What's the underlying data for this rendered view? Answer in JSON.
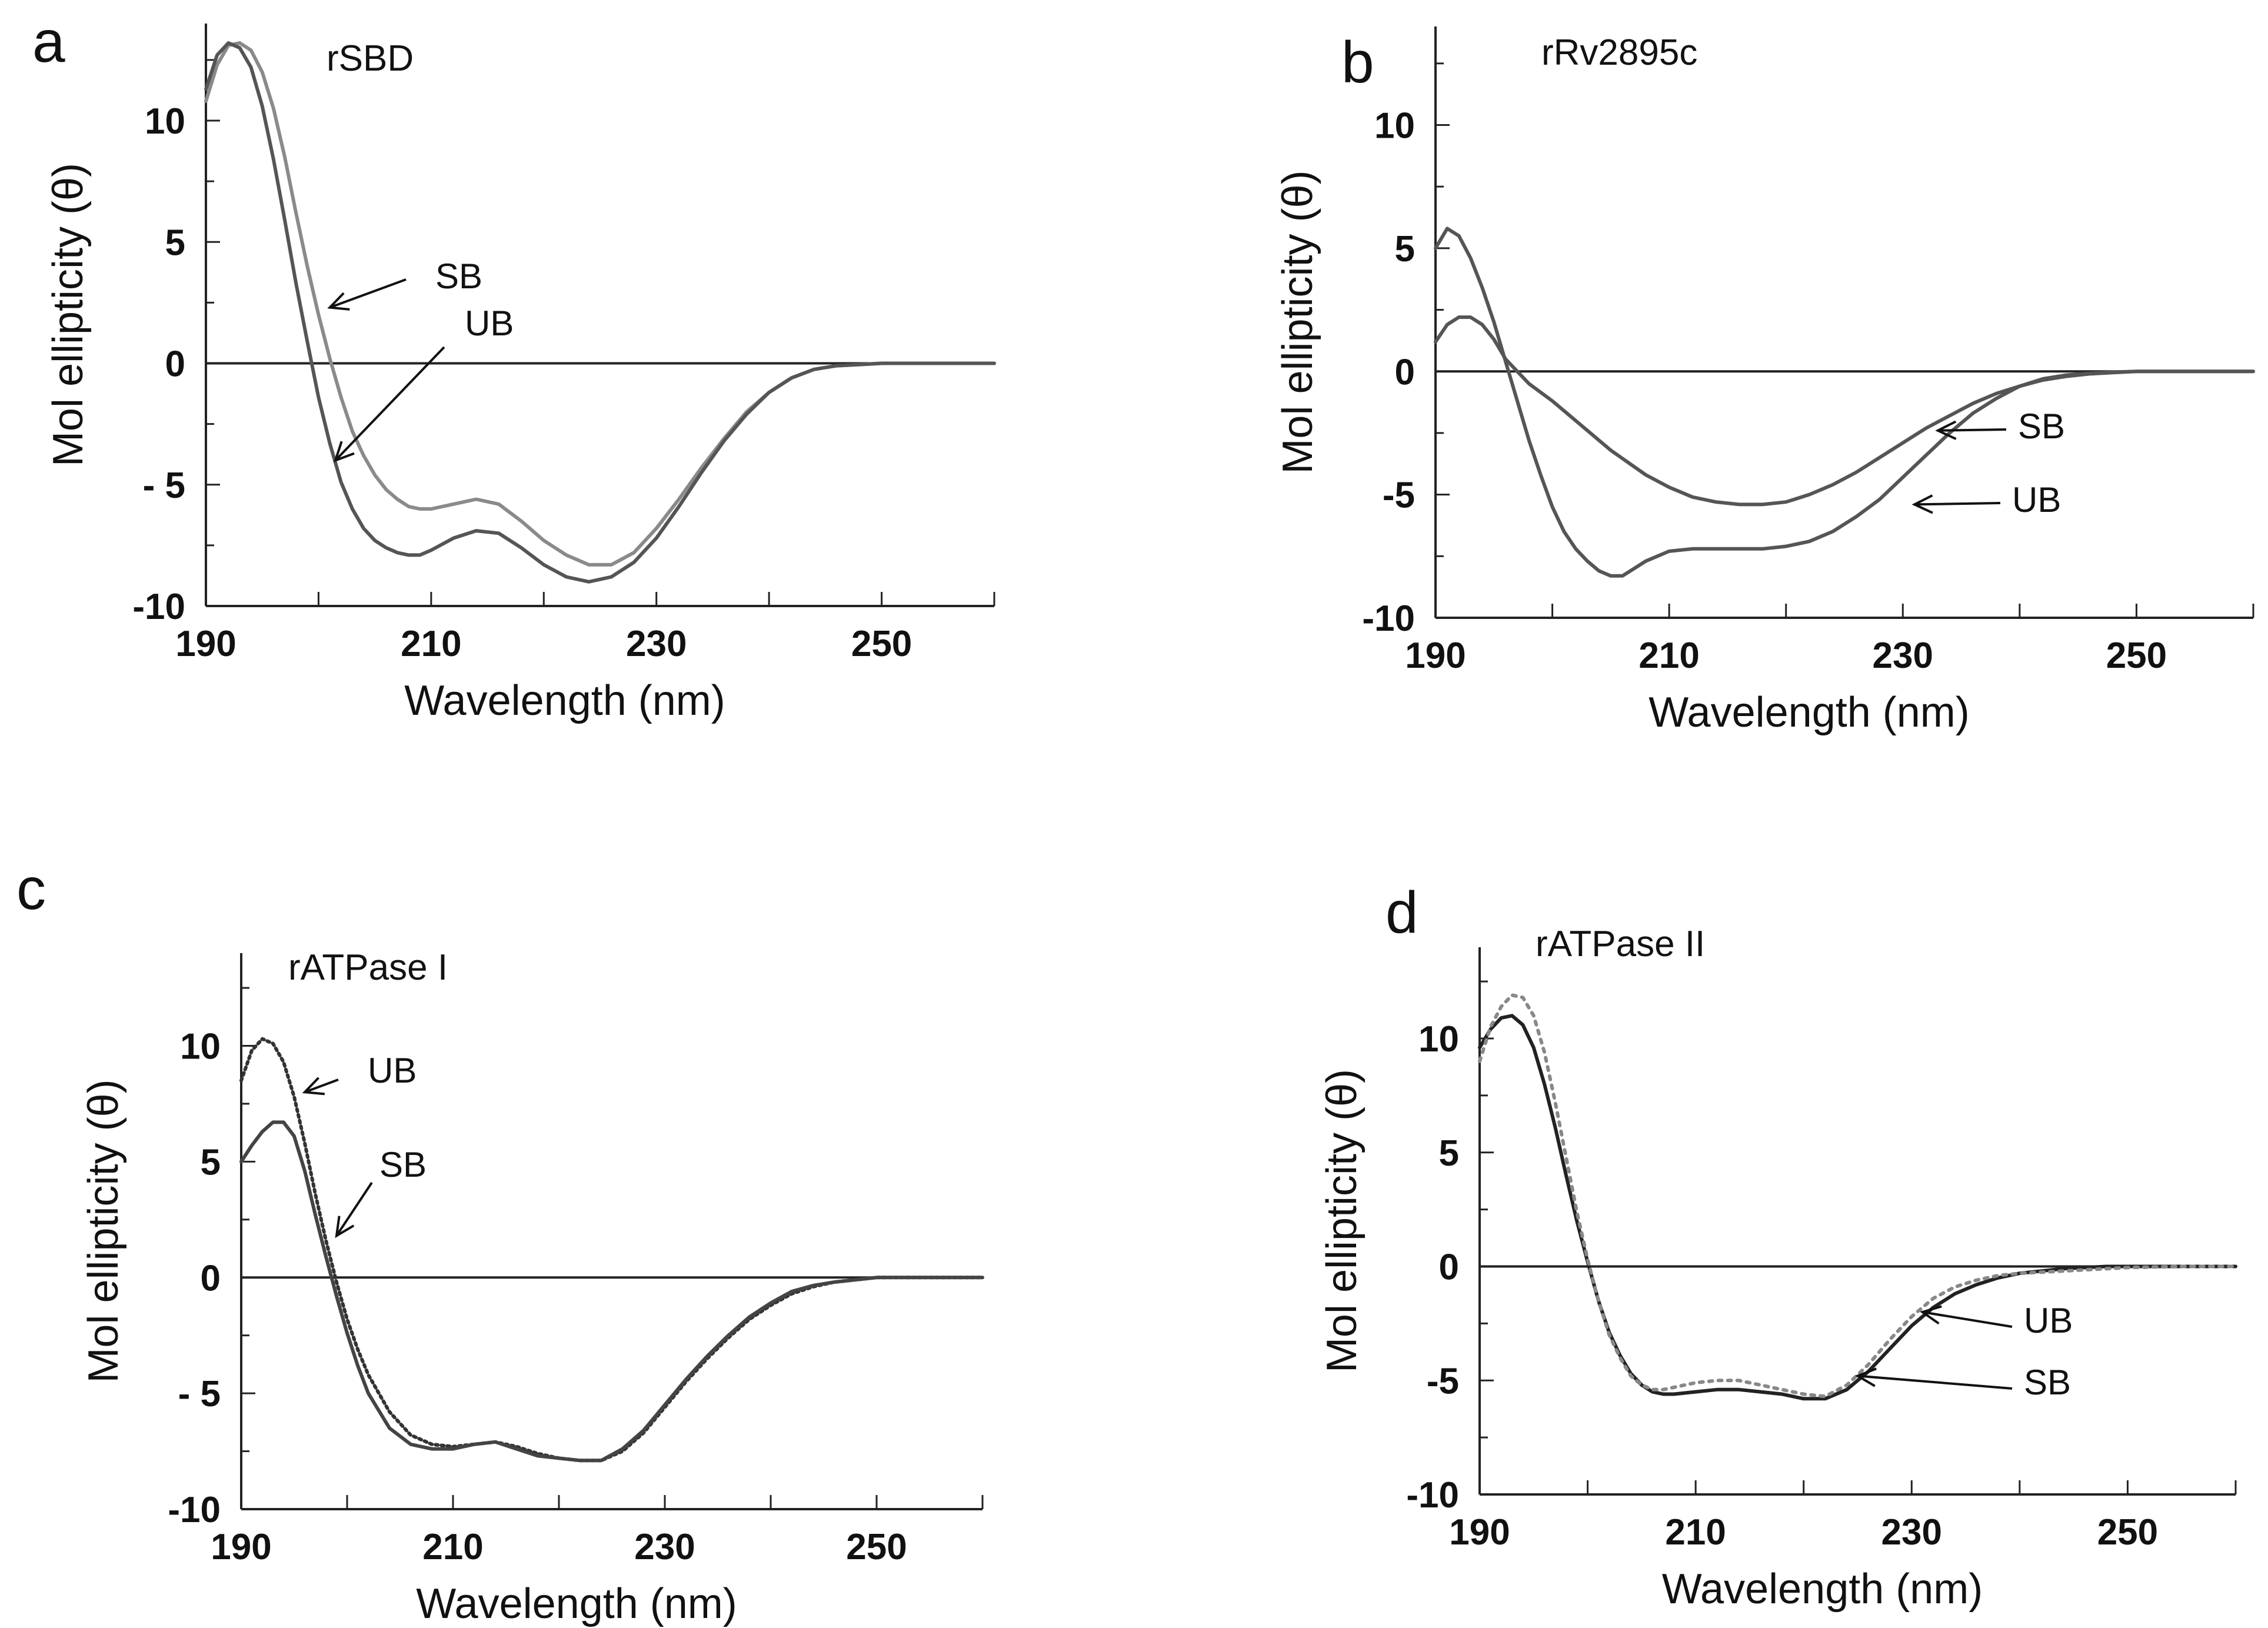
{
  "chart_data": [
    {
      "panel": "a",
      "type": "line",
      "title": "rSBD",
      "xlabel": "Wavelength (nm)",
      "ylabel": "Mol ellipticity (θ)",
      "xlim": [
        190,
        260
      ],
      "ylim": [
        -10,
        14
      ],
      "xticks": [
        190,
        210,
        230,
        250
      ],
      "yticks": [
        10,
        5,
        0,
        -5,
        -10
      ],
      "ytick_labels": [
        "10",
        "5",
        "0",
        "- 5",
        "-10"
      ],
      "series": [
        {
          "name": "SB",
          "color": "#8a8a8a",
          "dash": "",
          "x": [
            190,
            191,
            192,
            193,
            194,
            195,
            196,
            197,
            198,
            199,
            200,
            201,
            202,
            203,
            204,
            205,
            206,
            207,
            208,
            209,
            210,
            212,
            214,
            216,
            218,
            220,
            222,
            224,
            226,
            228,
            230,
            232,
            234,
            236,
            238,
            240,
            242,
            244,
            246,
            248,
            250,
            255,
            260
          ],
          "y": [
            10.8,
            12.3,
            13.1,
            13.2,
            12.9,
            12.0,
            10.5,
            8.5,
            6.2,
            4.0,
            2.0,
            0.2,
            -1.4,
            -2.8,
            -3.8,
            -4.6,
            -5.2,
            -5.6,
            -5.9,
            -6.0,
            -6.0,
            -5.8,
            -5.6,
            -5.8,
            -6.5,
            -7.3,
            -7.9,
            -8.3,
            -8.3,
            -7.8,
            -6.8,
            -5.6,
            -4.3,
            -3.1,
            -2.0,
            -1.2,
            -0.6,
            -0.25,
            -0.1,
            -0.05,
            0.0,
            0.0,
            0.0
          ]
        },
        {
          "name": "UB",
          "color": "#555555",
          "dash": "",
          "x": [
            190,
            191,
            192,
            193,
            194,
            195,
            196,
            197,
            198,
            199,
            200,
            201,
            202,
            203,
            204,
            205,
            206,
            207,
            208,
            209,
            210,
            212,
            214,
            216,
            218,
            220,
            222,
            224,
            226,
            228,
            230,
            232,
            234,
            236,
            238,
            240,
            242,
            244,
            246,
            248,
            250,
            255,
            260
          ],
          "y": [
            11.3,
            12.7,
            13.2,
            13.0,
            12.2,
            10.6,
            8.4,
            5.9,
            3.3,
            0.9,
            -1.4,
            -3.3,
            -4.9,
            -6.0,
            -6.8,
            -7.3,
            -7.6,
            -7.8,
            -7.9,
            -7.9,
            -7.7,
            -7.2,
            -6.9,
            -7.0,
            -7.6,
            -8.3,
            -8.8,
            -9.0,
            -8.8,
            -8.2,
            -7.2,
            -5.9,
            -4.5,
            -3.2,
            -2.1,
            -1.2,
            -0.6,
            -0.25,
            -0.1,
            -0.05,
            0.0,
            0.0,
            0.0
          ]
        }
      ],
      "annotations": [
        {
          "text": "SB",
          "x": 201,
          "y": 2.3
        },
        {
          "text": "UB",
          "x": 201.5,
          "y": -4.0
        }
      ]
    },
    {
      "panel": "b",
      "type": "line",
      "title": "rRv2895c",
      "xlabel": "Wavelength (nm)",
      "ylabel": "Mol ellipticity (θ)",
      "xlim": [
        190,
        260
      ],
      "ylim": [
        -10,
        14
      ],
      "xticks": [
        190,
        210,
        230,
        250
      ],
      "yticks": [
        10,
        5,
        0,
        -5,
        -10
      ],
      "ytick_labels": [
        "10",
        "5",
        "0",
        "-5",
        "-10"
      ],
      "series": [
        {
          "name": "SB",
          "color": "#555555",
          "dash": "",
          "x": [
            190,
            191,
            192,
            193,
            194,
            195,
            196,
            198,
            200,
            202,
            205,
            208,
            210,
            212,
            214,
            216,
            218,
            220,
            222,
            224,
            226,
            228,
            230,
            232,
            234,
            236,
            238,
            240,
            242,
            244,
            246,
            248,
            250,
            255,
            260
          ],
          "y": [
            1.2,
            1.9,
            2.2,
            2.2,
            1.9,
            1.3,
            0.5,
            -0.5,
            -1.2,
            -2.0,
            -3.2,
            -4.2,
            -4.7,
            -5.1,
            -5.3,
            -5.4,
            -5.4,
            -5.3,
            -5.0,
            -4.6,
            -4.1,
            -3.5,
            -2.9,
            -2.3,
            -1.8,
            -1.3,
            -0.9,
            -0.6,
            -0.35,
            -0.2,
            -0.1,
            -0.05,
            0.0,
            0.0,
            0.0
          ]
        },
        {
          "name": "UB",
          "color": "#555555",
          "dash": "",
          "x": [
            190,
            191,
            192,
            193,
            194,
            195,
            196,
            197,
            198,
            199,
            200,
            201,
            202,
            203,
            204,
            205,
            206,
            207,
            208,
            210,
            212,
            214,
            216,
            218,
            220,
            222,
            224,
            226,
            228,
            230,
            232,
            234,
            236,
            238,
            240,
            242,
            244,
            246,
            248,
            250,
            255,
            260
          ],
          "y": [
            5.0,
            5.8,
            5.5,
            4.6,
            3.4,
            2.0,
            0.4,
            -1.2,
            -2.8,
            -4.2,
            -5.5,
            -6.5,
            -7.2,
            -7.7,
            -8.1,
            -8.3,
            -8.3,
            -8.0,
            -7.7,
            -7.3,
            -7.2,
            -7.2,
            -7.2,
            -7.2,
            -7.1,
            -6.9,
            -6.5,
            -5.9,
            -5.2,
            -4.3,
            -3.4,
            -2.5,
            -1.7,
            -1.1,
            -0.6,
            -0.3,
            -0.15,
            -0.08,
            -0.03,
            0.0,
            0.0,
            0.0
          ]
        }
      ],
      "annotations": [
        {
          "text": "SB",
          "x": 233,
          "y": -2.4
        },
        {
          "text": "UB",
          "x": 231,
          "y": -5.4
        }
      ]
    },
    {
      "panel": "c",
      "type": "line",
      "title": "rATPase I",
      "xlabel": "Wavelength (nm)",
      "ylabel": "Mol ellipticity (θ)",
      "xlim": [
        190,
        260
      ],
      "ylim": [
        -10,
        14
      ],
      "xticks": [
        190,
        210,
        230,
        250
      ],
      "yticks": [
        10,
        5,
        0,
        -5,
        -10
      ],
      "ytick_labels": [
        "10",
        "5",
        "0",
        "- 5",
        "-10"
      ],
      "series": [
        {
          "name": "UB",
          "color": "#333333",
          "dash": "4,6",
          "x": [
            190,
            191,
            192,
            193,
            194,
            195,
            196,
            197,
            198,
            199,
            200,
            201,
            202,
            204,
            206,
            208,
            210,
            212,
            214,
            216,
            218,
            220,
            222,
            224,
            226,
            228,
            230,
            232,
            234,
            236,
            238,
            240,
            242,
            244,
            246,
            248,
            250,
            255,
            260
          ],
          "y": [
            8.5,
            9.8,
            10.3,
            10.1,
            9.3,
            7.8,
            5.8,
            3.6,
            1.6,
            -0.2,
            -1.8,
            -3.1,
            -4.2,
            -5.8,
            -6.8,
            -7.2,
            -7.3,
            -7.2,
            -7.1,
            -7.3,
            -7.6,
            -7.8,
            -7.9,
            -7.9,
            -7.5,
            -6.7,
            -5.6,
            -4.5,
            -3.5,
            -2.6,
            -1.8,
            -1.2,
            -0.7,
            -0.4,
            -0.2,
            -0.1,
            0.0,
            0.0,
            0.0
          ]
        },
        {
          "name": "SB",
          "color": "#444444",
          "dash": "",
          "x": [
            190,
            191,
            192,
            193,
            194,
            195,
            196,
            197,
            198,
            199,
            200,
            201,
            202,
            204,
            206,
            208,
            210,
            212,
            214,
            216,
            218,
            220,
            222,
            224,
            226,
            228,
            230,
            232,
            234,
            236,
            238,
            240,
            242,
            244,
            246,
            248,
            250,
            255,
            260
          ],
          "y": [
            5.0,
            5.7,
            6.3,
            6.7,
            6.7,
            6.1,
            4.6,
            2.7,
            0.9,
            -0.8,
            -2.4,
            -3.8,
            -5.0,
            -6.5,
            -7.2,
            -7.4,
            -7.4,
            -7.2,
            -7.1,
            -7.4,
            -7.7,
            -7.8,
            -7.9,
            -7.9,
            -7.4,
            -6.6,
            -5.5,
            -4.4,
            -3.4,
            -2.5,
            -1.7,
            -1.1,
            -0.6,
            -0.35,
            -0.2,
            -0.1,
            0.0,
            0.0,
            0.0
          ]
        }
      ],
      "annotations": [
        {
          "text": "UB",
          "x": 196,
          "y": 8.0
        },
        {
          "text": "SB",
          "x": 199,
          "y": 1.8
        }
      ]
    },
    {
      "panel": "d",
      "type": "line",
      "title": "rATPase II",
      "xlabel": "Wavelength (nm)",
      "ylabel": "Mol ellipticity (θ)",
      "xlim": [
        190,
        260
      ],
      "ylim": [
        -10,
        14
      ],
      "xticks": [
        190,
        210,
        230,
        250
      ],
      "yticks": [
        10,
        5,
        0,
        -5,
        -10
      ],
      "ytick_labels": [
        "10",
        "5",
        "0",
        "-5",
        "-10"
      ],
      "series": [
        {
          "name": "UB",
          "color": "#222222",
          "dash": "",
          "x": [
            190,
            191,
            192,
            193,
            194,
            195,
            196,
            197,
            198,
            199,
            200,
            201,
            202,
            203,
            204,
            205,
            206,
            207,
            208,
            210,
            212,
            214,
            216,
            218,
            220,
            222,
            224,
            226,
            228,
            230,
            232,
            234,
            236,
            238,
            240,
            242,
            244,
            246,
            248,
            250,
            255,
            260
          ],
          "y": [
            9.6,
            10.4,
            10.9,
            11.0,
            10.6,
            9.6,
            8.0,
            6.1,
            4.0,
            2.0,
            0.2,
            -1.5,
            -2.9,
            -3.9,
            -4.7,
            -5.2,
            -5.5,
            -5.6,
            -5.6,
            -5.5,
            -5.4,
            -5.4,
            -5.5,
            -5.6,
            -5.8,
            -5.8,
            -5.4,
            -4.6,
            -3.6,
            -2.6,
            -1.8,
            -1.2,
            -0.8,
            -0.5,
            -0.3,
            -0.2,
            -0.1,
            -0.05,
            0.0,
            0.0,
            0.0,
            0.0
          ]
        },
        {
          "name": "SB",
          "color": "#888888",
          "dash": "6,10",
          "x": [
            190,
            191,
            192,
            193,
            194,
            195,
            196,
            197,
            198,
            199,
            200,
            201,
            202,
            203,
            204,
            205,
            206,
            207,
            208,
            210,
            212,
            214,
            216,
            218,
            220,
            222,
            224,
            226,
            228,
            230,
            232,
            234,
            236,
            238,
            240,
            242,
            244,
            246,
            248,
            250,
            255,
            260
          ],
          "y": [
            9.0,
            10.5,
            11.4,
            11.9,
            11.8,
            11.0,
            9.4,
            7.2,
            4.8,
            2.4,
            0.3,
            -1.5,
            -3.0,
            -4.0,
            -4.8,
            -5.2,
            -5.4,
            -5.4,
            -5.3,
            -5.1,
            -5.0,
            -5.0,
            -5.2,
            -5.4,
            -5.6,
            -5.7,
            -5.2,
            -4.3,
            -3.2,
            -2.2,
            -1.4,
            -0.9,
            -0.6,
            -0.4,
            -0.3,
            -0.25,
            -0.2,
            -0.15,
            -0.1,
            -0.05,
            0.0,
            0.0
          ]
        }
      ],
      "annotations": [
        {
          "text": "UB",
          "x": 231,
          "y": -2.0
        },
        {
          "text": "SB",
          "x": 225,
          "y": -4.8
        }
      ]
    }
  ]
}
